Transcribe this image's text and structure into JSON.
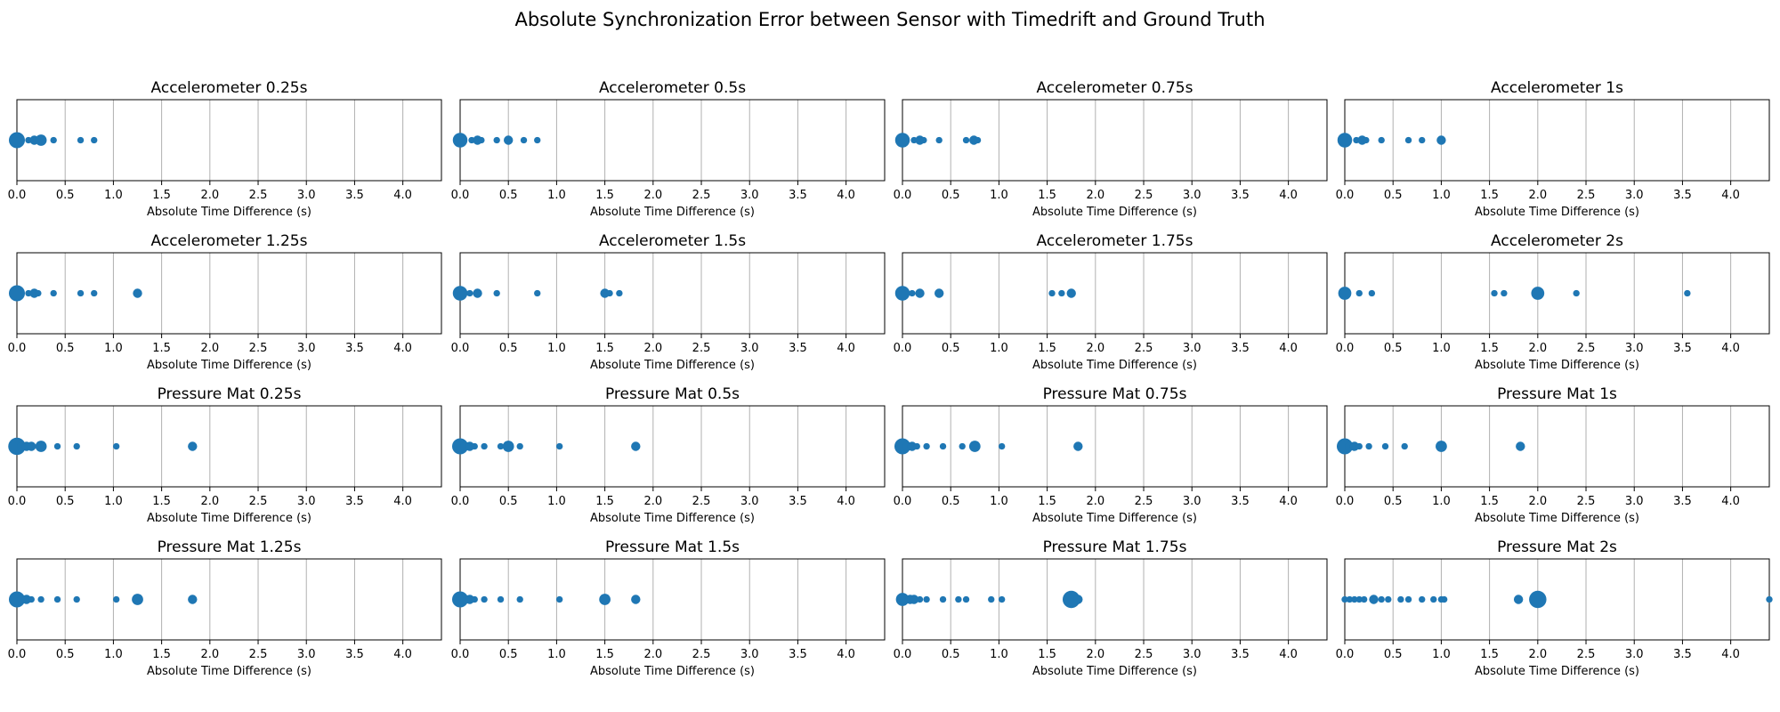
{
  "figure": {
    "suptitle": "Absolute Synchronization Error between Sensor with Timedrift and Ground Truth",
    "xlabel": "Absolute Time Difference (s)",
    "marker_color": "#1f77b4",
    "grid_color": "#b0b0b0"
  },
  "chart_data": [
    {
      "type": "scatter",
      "title": "Accelerometer 0.25s",
      "xlabel": "Absolute Time Difference (s)",
      "xlim": [
        0,
        4.4
      ],
      "xticks": [
        "0.0",
        "0.5",
        "1.0",
        "1.5",
        "2.0",
        "2.5",
        "3.0",
        "3.5",
        "4.0"
      ],
      "grid": "x",
      "points": [
        {
          "x": 0.0,
          "count": 6
        },
        {
          "x": 0.12,
          "count": 1
        },
        {
          "x": 0.18,
          "count": 2
        },
        {
          "x": 0.25,
          "count": 3
        },
        {
          "x": 0.38,
          "count": 1
        },
        {
          "x": 0.66,
          "count": 1
        },
        {
          "x": 0.8,
          "count": 1
        }
      ]
    },
    {
      "type": "scatter",
      "title": "Accelerometer 0.5s",
      "xlabel": "Absolute Time Difference (s)",
      "xlim": [
        0,
        4.4
      ],
      "xticks": [
        "0.0",
        "0.5",
        "1.0",
        "1.5",
        "2.0",
        "2.5",
        "3.0",
        "3.5",
        "4.0"
      ],
      "grid": "x",
      "points": [
        {
          "x": 0.0,
          "count": 5
        },
        {
          "x": 0.12,
          "count": 1
        },
        {
          "x": 0.18,
          "count": 2
        },
        {
          "x": 0.22,
          "count": 1
        },
        {
          "x": 0.38,
          "count": 1
        },
        {
          "x": 0.5,
          "count": 2
        },
        {
          "x": 0.66,
          "count": 1
        },
        {
          "x": 0.8,
          "count": 1
        }
      ]
    },
    {
      "type": "scatter",
      "title": "Accelerometer 0.75s",
      "xlabel": "Absolute Time Difference (s)",
      "xlim": [
        0,
        4.4
      ],
      "xticks": [
        "0.0",
        "0.5",
        "1.0",
        "1.5",
        "2.0",
        "2.5",
        "3.0",
        "3.5",
        "4.0"
      ],
      "grid": "x",
      "points": [
        {
          "x": 0.0,
          "count": 5
        },
        {
          "x": 0.12,
          "count": 1
        },
        {
          "x": 0.18,
          "count": 2
        },
        {
          "x": 0.22,
          "count": 1
        },
        {
          "x": 0.38,
          "count": 1
        },
        {
          "x": 0.66,
          "count": 1
        },
        {
          "x": 0.74,
          "count": 2
        },
        {
          "x": 0.78,
          "count": 1
        }
      ]
    },
    {
      "type": "scatter",
      "title": "Accelerometer 1s",
      "xlabel": "Absolute Time Difference (s)",
      "xlim": [
        0,
        4.4
      ],
      "xticks": [
        "0.0",
        "0.5",
        "1.0",
        "1.5",
        "2.0",
        "2.5",
        "3.0",
        "3.5",
        "4.0"
      ],
      "grid": "x",
      "points": [
        {
          "x": 0.0,
          "count": 5
        },
        {
          "x": 0.12,
          "count": 1
        },
        {
          "x": 0.18,
          "count": 2
        },
        {
          "x": 0.22,
          "count": 1
        },
        {
          "x": 0.38,
          "count": 1
        },
        {
          "x": 0.66,
          "count": 1
        },
        {
          "x": 0.8,
          "count": 1
        },
        {
          "x": 1.0,
          "count": 2
        }
      ]
    },
    {
      "type": "scatter",
      "title": "Accelerometer 1.25s",
      "xlabel": "Absolute Time Difference (s)",
      "xlim": [
        0,
        4.4
      ],
      "xticks": [
        "0.0",
        "0.5",
        "1.0",
        "1.5",
        "2.0",
        "2.5",
        "3.0",
        "3.5",
        "4.0"
      ],
      "grid": "x",
      "points": [
        {
          "x": 0.0,
          "count": 6
        },
        {
          "x": 0.12,
          "count": 1
        },
        {
          "x": 0.18,
          "count": 2
        },
        {
          "x": 0.22,
          "count": 1
        },
        {
          "x": 0.38,
          "count": 1
        },
        {
          "x": 0.66,
          "count": 1
        },
        {
          "x": 0.8,
          "count": 1
        },
        {
          "x": 1.25,
          "count": 2
        }
      ]
    },
    {
      "type": "scatter",
      "title": "Accelerometer 1.5s",
      "xlabel": "Absolute Time Difference (s)",
      "xlim": [
        0,
        4.4
      ],
      "xticks": [
        "0.0",
        "0.5",
        "1.0",
        "1.5",
        "2.0",
        "2.5",
        "3.0",
        "3.5",
        "4.0"
      ],
      "grid": "x",
      "points": [
        {
          "x": 0.0,
          "count": 5
        },
        {
          "x": 0.1,
          "count": 1
        },
        {
          "x": 0.18,
          "count": 2
        },
        {
          "x": 0.38,
          "count": 1
        },
        {
          "x": 0.8,
          "count": 1
        },
        {
          "x": 1.5,
          "count": 2
        },
        {
          "x": 1.55,
          "count": 1
        },
        {
          "x": 1.65,
          "count": 1
        }
      ]
    },
    {
      "type": "scatter",
      "title": "Accelerometer 1.75s",
      "xlabel": "Absolute Time Difference (s)",
      "xlim": [
        0,
        4.4
      ],
      "xticks": [
        "0.0",
        "0.5",
        "1.0",
        "1.5",
        "2.0",
        "2.5",
        "3.0",
        "3.5",
        "4.0"
      ],
      "grid": "x",
      "points": [
        {
          "x": 0.0,
          "count": 5
        },
        {
          "x": 0.1,
          "count": 1
        },
        {
          "x": 0.18,
          "count": 2
        },
        {
          "x": 0.38,
          "count": 2
        },
        {
          "x": 1.55,
          "count": 1
        },
        {
          "x": 1.65,
          "count": 1
        },
        {
          "x": 1.75,
          "count": 2
        }
      ]
    },
    {
      "type": "scatter",
      "title": "Accelerometer 2s",
      "xlabel": "Absolute Time Difference (s)",
      "xlim": [
        0,
        4.4
      ],
      "xticks": [
        "0.0",
        "0.5",
        "1.0",
        "1.5",
        "2.0",
        "2.5",
        "3.0",
        "3.5",
        "4.0"
      ],
      "grid": "x",
      "points": [
        {
          "x": 0.0,
          "count": 4
        },
        {
          "x": 0.15,
          "count": 1
        },
        {
          "x": 0.28,
          "count": 1
        },
        {
          "x": 1.55,
          "count": 1
        },
        {
          "x": 1.65,
          "count": 1
        },
        {
          "x": 2.0,
          "count": 4
        },
        {
          "x": 2.4,
          "count": 1
        },
        {
          "x": 3.55,
          "count": 1
        }
      ]
    },
    {
      "type": "scatter",
      "title": "Pressure Mat 0.25s",
      "xlabel": "Absolute Time Difference (s)",
      "xlim": [
        0,
        4.4
      ],
      "xticks": [
        "0.0",
        "0.5",
        "1.0",
        "1.5",
        "2.0",
        "2.5",
        "3.0",
        "3.5",
        "4.0"
      ],
      "grid": "x",
      "points": [
        {
          "x": 0.0,
          "count": 7
        },
        {
          "x": 0.05,
          "count": 2
        },
        {
          "x": 0.1,
          "count": 2
        },
        {
          "x": 0.15,
          "count": 2
        },
        {
          "x": 0.25,
          "count": 3
        },
        {
          "x": 0.42,
          "count": 1
        },
        {
          "x": 0.62,
          "count": 1
        },
        {
          "x": 1.03,
          "count": 1
        },
        {
          "x": 1.82,
          "count": 2
        }
      ]
    },
    {
      "type": "scatter",
      "title": "Pressure Mat 0.5s",
      "xlabel": "Absolute Time Difference (s)",
      "xlim": [
        0,
        4.4
      ],
      "xticks": [
        "0.0",
        "0.5",
        "1.0",
        "1.5",
        "2.0",
        "2.5",
        "3.0",
        "3.5",
        "4.0"
      ],
      "grid": "x",
      "points": [
        {
          "x": 0.0,
          "count": 6
        },
        {
          "x": 0.05,
          "count": 2
        },
        {
          "x": 0.1,
          "count": 2
        },
        {
          "x": 0.15,
          "count": 1
        },
        {
          "x": 0.25,
          "count": 1
        },
        {
          "x": 0.42,
          "count": 1
        },
        {
          "x": 0.5,
          "count": 3
        },
        {
          "x": 0.62,
          "count": 1
        },
        {
          "x": 1.03,
          "count": 1
        },
        {
          "x": 1.82,
          "count": 2
        }
      ]
    },
    {
      "type": "scatter",
      "title": "Pressure Mat 0.75s",
      "xlabel": "Absolute Time Difference (s)",
      "xlim": [
        0,
        4.4
      ],
      "xticks": [
        "0.0",
        "0.5",
        "1.0",
        "1.5",
        "2.0",
        "2.5",
        "3.0",
        "3.5",
        "4.0"
      ],
      "grid": "x",
      "points": [
        {
          "x": 0.0,
          "count": 6
        },
        {
          "x": 0.05,
          "count": 2
        },
        {
          "x": 0.1,
          "count": 2
        },
        {
          "x": 0.15,
          "count": 1
        },
        {
          "x": 0.25,
          "count": 1
        },
        {
          "x": 0.42,
          "count": 1
        },
        {
          "x": 0.62,
          "count": 1
        },
        {
          "x": 0.75,
          "count": 3
        },
        {
          "x": 1.03,
          "count": 1
        },
        {
          "x": 1.82,
          "count": 2
        }
      ]
    },
    {
      "type": "scatter",
      "title": "Pressure Mat 1s",
      "xlabel": "Absolute Time Difference (s)",
      "xlim": [
        0,
        4.4
      ],
      "xticks": [
        "0.0",
        "0.5",
        "1.0",
        "1.5",
        "2.0",
        "2.5",
        "3.0",
        "3.5",
        "4.0"
      ],
      "grid": "x",
      "points": [
        {
          "x": 0.0,
          "count": 6
        },
        {
          "x": 0.05,
          "count": 2
        },
        {
          "x": 0.1,
          "count": 2
        },
        {
          "x": 0.15,
          "count": 1
        },
        {
          "x": 0.25,
          "count": 1
        },
        {
          "x": 0.42,
          "count": 1
        },
        {
          "x": 0.62,
          "count": 1
        },
        {
          "x": 1.0,
          "count": 3
        },
        {
          "x": 1.82,
          "count": 2
        }
      ]
    },
    {
      "type": "scatter",
      "title": "Pressure Mat 1.25s",
      "xlabel": "Absolute Time Difference (s)",
      "xlim": [
        0,
        4.4
      ],
      "xticks": [
        "0.0",
        "0.5",
        "1.0",
        "1.5",
        "2.0",
        "2.5",
        "3.0",
        "3.5",
        "4.0"
      ],
      "grid": "x",
      "points": [
        {
          "x": 0.0,
          "count": 6
        },
        {
          "x": 0.05,
          "count": 2
        },
        {
          "x": 0.1,
          "count": 2
        },
        {
          "x": 0.15,
          "count": 1
        },
        {
          "x": 0.25,
          "count": 1
        },
        {
          "x": 0.42,
          "count": 1
        },
        {
          "x": 0.62,
          "count": 1
        },
        {
          "x": 1.03,
          "count": 1
        },
        {
          "x": 1.25,
          "count": 3
        },
        {
          "x": 1.82,
          "count": 2
        }
      ]
    },
    {
      "type": "scatter",
      "title": "Pressure Mat 1.5s",
      "xlabel": "Absolute Time Difference (s)",
      "xlim": [
        0,
        4.4
      ],
      "xticks": [
        "0.0",
        "0.5",
        "1.0",
        "1.5",
        "2.0",
        "2.5",
        "3.0",
        "3.5",
        "4.0"
      ],
      "grid": "x",
      "points": [
        {
          "x": 0.0,
          "count": 6
        },
        {
          "x": 0.05,
          "count": 2
        },
        {
          "x": 0.1,
          "count": 2
        },
        {
          "x": 0.15,
          "count": 1
        },
        {
          "x": 0.25,
          "count": 1
        },
        {
          "x": 0.42,
          "count": 1
        },
        {
          "x": 0.62,
          "count": 1
        },
        {
          "x": 1.03,
          "count": 1
        },
        {
          "x": 1.5,
          "count": 3
        },
        {
          "x": 1.82,
          "count": 2
        }
      ]
    },
    {
      "type": "scatter",
      "title": "Pressure Mat 1.75s",
      "xlabel": "Absolute Time Difference (s)",
      "xlim": [
        0,
        4.4
      ],
      "xticks": [
        "0.0",
        "0.5",
        "1.0",
        "1.5",
        "2.0",
        "2.5",
        "3.0",
        "3.5",
        "4.0"
      ],
      "grid": "x",
      "points": [
        {
          "x": 0.0,
          "count": 4
        },
        {
          "x": 0.08,
          "count": 2
        },
        {
          "x": 0.12,
          "count": 2
        },
        {
          "x": 0.18,
          "count": 1
        },
        {
          "x": 0.25,
          "count": 1
        },
        {
          "x": 0.42,
          "count": 1
        },
        {
          "x": 0.58,
          "count": 1
        },
        {
          "x": 0.66,
          "count": 1
        },
        {
          "x": 0.92,
          "count": 1
        },
        {
          "x": 1.03,
          "count": 1
        },
        {
          "x": 1.75,
          "count": 7
        },
        {
          "x": 1.82,
          "count": 2
        }
      ]
    },
    {
      "type": "scatter",
      "title": "Pressure Mat 2s",
      "xlabel": "Absolute Time Difference (s)",
      "xlim": [
        0,
        4.4
      ],
      "xticks": [
        "0.0",
        "0.5",
        "1.0",
        "1.5",
        "2.0",
        "2.5",
        "3.0",
        "3.5",
        "4.0"
      ],
      "grid": "x",
      "points": [
        {
          "x": 0.0,
          "count": 1
        },
        {
          "x": 0.05,
          "count": 1
        },
        {
          "x": 0.1,
          "count": 1
        },
        {
          "x": 0.15,
          "count": 1
        },
        {
          "x": 0.2,
          "count": 1
        },
        {
          "x": 0.3,
          "count": 2
        },
        {
          "x": 0.38,
          "count": 1
        },
        {
          "x": 0.45,
          "count": 1
        },
        {
          "x": 0.58,
          "count": 1
        },
        {
          "x": 0.66,
          "count": 1
        },
        {
          "x": 0.8,
          "count": 1
        },
        {
          "x": 0.92,
          "count": 1
        },
        {
          "x": 1.0,
          "count": 1
        },
        {
          "x": 1.03,
          "count": 1
        },
        {
          "x": 1.8,
          "count": 2
        },
        {
          "x": 2.0,
          "count": 7
        },
        {
          "x": 4.4,
          "count": 1
        }
      ]
    }
  ]
}
